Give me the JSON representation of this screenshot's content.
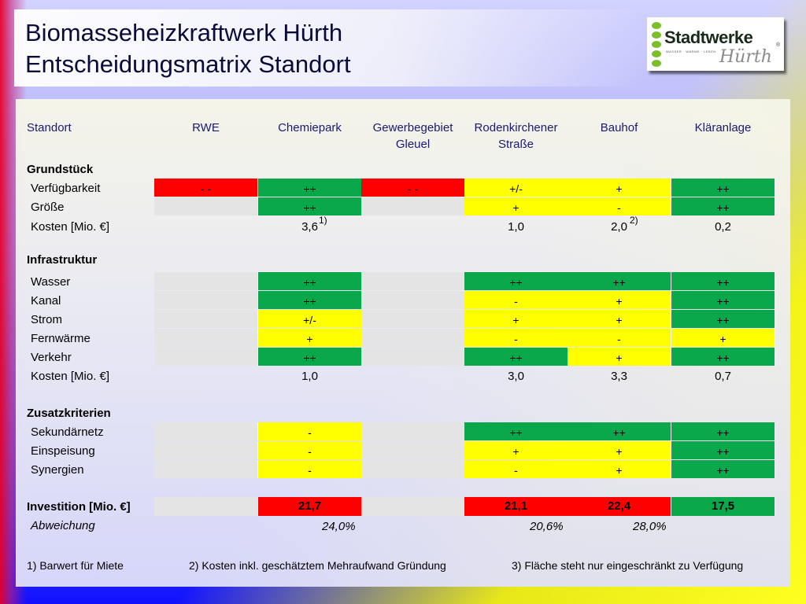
{
  "title": {
    "line1": "Biomasseheizkraftwerk Hürth",
    "line2": "Entscheidungsmatrix Standort"
  },
  "logo": {
    "brand": "Stadtwerke",
    "tagline": "WASSER · WÄRME · LEBEN",
    "city": "Hürth",
    "reg": "®"
  },
  "header": {
    "label": "Standort",
    "columns": [
      "RWE",
      "Chemiepark",
      "Gewerbegebiet Gleuel",
      "Rodenkirchener Straße",
      "Bauhof",
      "Kläranlage"
    ]
  },
  "sections": {
    "grundstueck": {
      "title": "Grundstück",
      "rows": [
        {
          "label": "Verfügbarkeit",
          "cells": [
            "- -",
            "++",
            "- -",
            "+/-",
            "+",
            "++"
          ],
          "colors": [
            "r",
            "g",
            "r",
            "y",
            "y",
            "g"
          ]
        },
        {
          "label": "Größe",
          "cells": [
            "",
            "++",
            "",
            "+",
            "-",
            "++"
          ],
          "colors": [
            "e",
            "g",
            "e",
            "y",
            "y",
            "g"
          ]
        }
      ],
      "kosten": {
        "label": "Kosten [Mio. €]",
        "values": [
          "",
          "3,6",
          "",
          "1,0",
          "2,0",
          "0,2"
        ]
      }
    },
    "infrastruktur": {
      "title": "Infrastruktur",
      "rows": [
        {
          "label": "Wasser",
          "cells": [
            "",
            "++",
            "",
            "++",
            "++",
            "++"
          ],
          "colors": [
            "e",
            "g",
            "e",
            "g",
            "g",
            "g"
          ]
        },
        {
          "label": "Kanal",
          "cells": [
            "",
            "++",
            "",
            "-",
            "+",
            "++"
          ],
          "colors": [
            "e",
            "g",
            "e",
            "y",
            "y",
            "g"
          ]
        },
        {
          "label": "Strom",
          "cells": [
            "",
            "+/-",
            "",
            "+",
            "+",
            "++"
          ],
          "colors": [
            "e",
            "y",
            "e",
            "y",
            "y",
            "g"
          ]
        },
        {
          "label": "Fernwärme",
          "cells": [
            "",
            "+",
            "",
            "-",
            "-",
            "+"
          ],
          "colors": [
            "e",
            "y",
            "e",
            "y",
            "y",
            "y"
          ]
        },
        {
          "label": "Verkehr",
          "cells": [
            "",
            "++",
            "",
            "++",
            "+",
            "++"
          ],
          "colors": [
            "e",
            "g",
            "e",
            "g",
            "y",
            "g"
          ]
        }
      ],
      "kosten": {
        "label": "Kosten [Mio. €]",
        "values": [
          "",
          "1,0",
          "",
          "3,0",
          "3,3",
          "0,7"
        ]
      }
    },
    "zusatz": {
      "title": "Zusatzkriterien",
      "rows": [
        {
          "label": "Sekundärnetz",
          "cells": [
            "",
            "-",
            "",
            "++",
            "++",
            "++"
          ],
          "colors": [
            "e",
            "y",
            "e",
            "g",
            "g",
            "g"
          ]
        },
        {
          "label": "Einspeisung",
          "cells": [
            "",
            "-",
            "",
            "+",
            "+",
            "++"
          ],
          "colors": [
            "e",
            "y",
            "e",
            "y",
            "y",
            "g"
          ]
        },
        {
          "label": "Synergien",
          "cells": [
            "",
            "-",
            "",
            "-",
            "+",
            "++"
          ],
          "colors": [
            "e",
            "y",
            "e",
            "y",
            "y",
            "g"
          ]
        }
      ]
    }
  },
  "investition": {
    "label": "Investition [Mio. €]",
    "cells": [
      "",
      "21,7",
      "",
      "21,1",
      "22,4",
      "17,5"
    ],
    "colors": [
      "e",
      "r",
      "e",
      "r",
      "r",
      "g"
    ]
  },
  "abweichung": {
    "label": "Abweichung",
    "values": [
      "24,0%",
      "20,6%",
      "28,0%"
    ]
  },
  "notes": {
    "n1": "1)",
    "n2": "2)",
    "n3": "3)"
  },
  "footnotes": [
    "1) Barwert für Miete",
    "2) Kosten inkl. geschätztem Mehraufwand Gründung",
    "3) Fläche steht nur eingeschränkt zu Verfügung"
  ]
}
